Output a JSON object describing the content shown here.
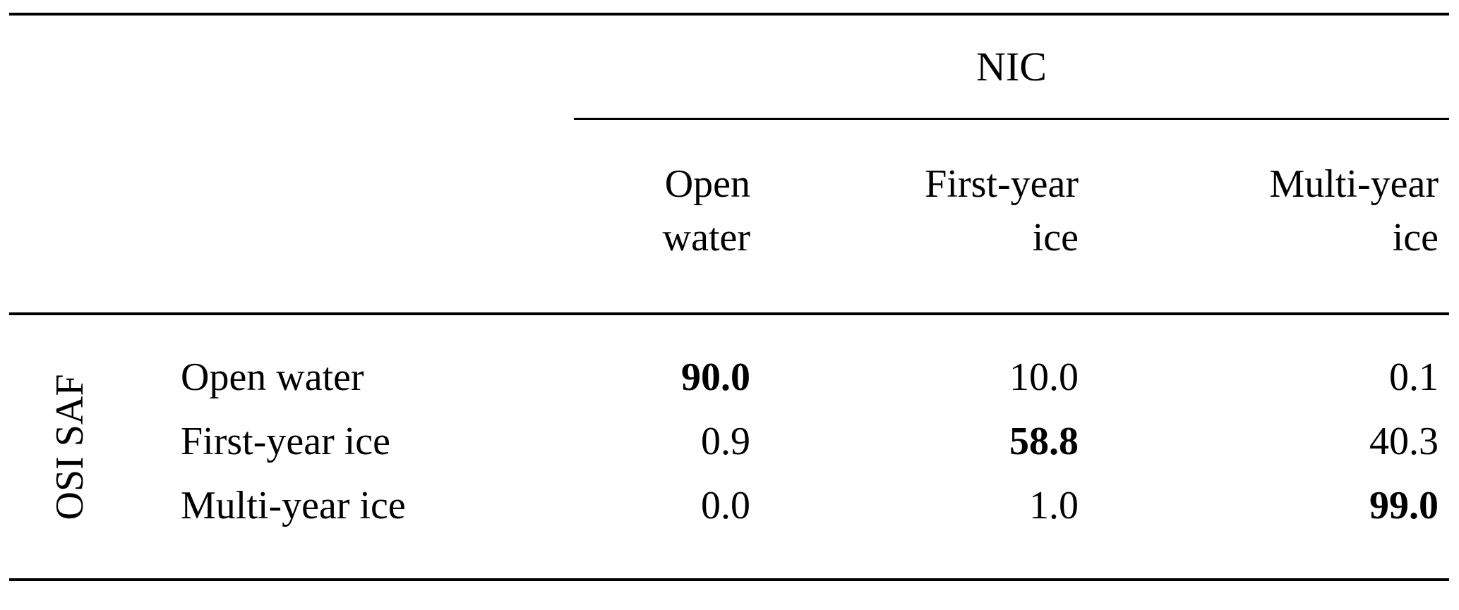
{
  "colors": {
    "text": "#000000",
    "background": "#ffffff",
    "rule": "#000000"
  },
  "table": {
    "col_group_label": "NIC",
    "row_group_label": "OSI SAF",
    "columns": [
      {
        "line1": "Open",
        "line2": "water"
      },
      {
        "line1": "First-year",
        "line2": "ice"
      },
      {
        "line1": "Multi-year",
        "line2": "ice"
      }
    ],
    "rows": [
      {
        "label": "Open water",
        "values": [
          "90.0",
          "10.0",
          "0.1"
        ]
      },
      {
        "label": "First-year ice",
        "values": [
          "0.9",
          "58.8",
          "40.3"
        ]
      },
      {
        "label": "Multi-year ice",
        "values": [
          "0.0",
          "1.0",
          "99.0"
        ]
      }
    ]
  }
}
